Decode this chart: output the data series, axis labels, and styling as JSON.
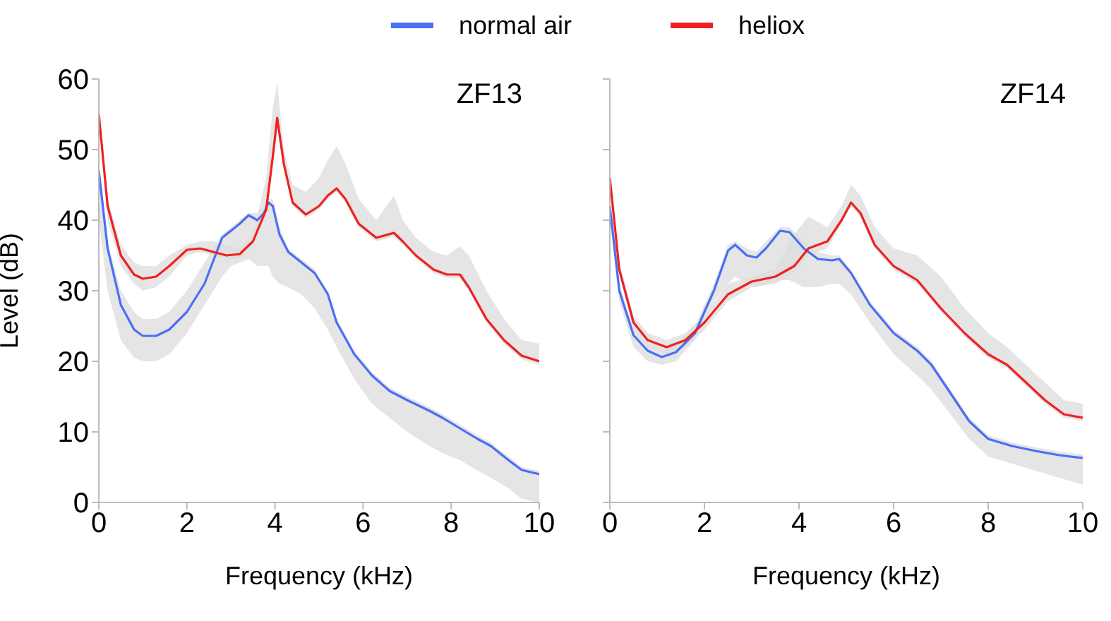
{
  "chart_data": [
    {
      "type": "line",
      "title": "ZF13",
      "xlabel": "Frequency (kHz)",
      "ylabel": "Level (dB)",
      "xlim": [
        0,
        10
      ],
      "xticks": [
        0,
        2,
        4,
        6,
        8,
        10
      ],
      "ylim": [
        0,
        60
      ],
      "yticks": [
        0,
        10,
        20,
        30,
        40,
        50,
        60
      ],
      "grid": false,
      "legend": "top",
      "series": [
        {
          "name": "normal air",
          "color": "#4a6ef5",
          "x": [
            0,
            0.2,
            0.5,
            0.8,
            1.0,
            1.3,
            1.6,
            2.0,
            2.4,
            2.8,
            3.0,
            3.2,
            3.4,
            3.6,
            3.75,
            3.85,
            3.95,
            4.1,
            4.3,
            4.6,
            4.9,
            5.2,
            5.4,
            5.8,
            6.2,
            6.6,
            7.0,
            7.5,
            7.8,
            8.2,
            8.6,
            8.9,
            9.3,
            9.6,
            10
          ],
          "values": [
            47,
            36,
            28,
            24.5,
            23.6,
            23.6,
            24.5,
            27,
            31,
            37.5,
            38.5,
            39.5,
            40.7,
            40,
            41,
            42.5,
            42,
            38,
            35.5,
            34,
            32.5,
            29.5,
            25.5,
            21,
            18,
            15.8,
            14.5,
            13,
            12,
            10.5,
            9,
            8,
            6,
            4.6,
            4
          ],
          "lower": [
            40,
            30,
            23,
            20.5,
            20,
            20,
            21,
            24,
            28,
            32,
            33.5,
            34,
            34.5,
            33.5,
            33.5,
            33.5,
            32,
            31,
            30.5,
            29.5,
            27.5,
            24.5,
            22,
            17.5,
            14,
            12,
            10,
            8,
            7,
            6,
            4.5,
            3.5,
            2,
            0.5,
            0
          ],
          "upper": [
            47,
            37,
            30,
            27,
            26,
            26,
            27,
            30,
            34,
            38,
            39,
            40,
            41,
            41,
            42,
            43,
            43,
            39,
            36,
            34.5,
            33,
            30,
            26,
            21.5,
            18.5,
            16.3,
            15,
            13.5,
            12.5,
            11,
            9.5,
            8.5,
            6.5,
            5,
            4.5
          ]
        },
        {
          "name": "heliox",
          "color": "#f02020",
          "x": [
            0,
            0.2,
            0.5,
            0.8,
            1.0,
            1.3,
            1.6,
            2.0,
            2.3,
            2.6,
            2.9,
            3.2,
            3.5,
            3.8,
            3.95,
            4.05,
            4.2,
            4.4,
            4.7,
            5.0,
            5.2,
            5.4,
            5.6,
            5.9,
            6.3,
            6.7,
            6.9,
            7.2,
            7.6,
            7.9,
            8.2,
            8.4,
            8.8,
            9.2,
            9.6,
            10
          ],
          "values": [
            55,
            42,
            35,
            32.3,
            31.7,
            32,
            33.5,
            35.8,
            36,
            35.5,
            35,
            35.2,
            37,
            41.5,
            49,
            54.5,
            48,
            42.5,
            40.8,
            42,
            43.5,
            44.5,
            43,
            39.5,
            37.5,
            38.2,
            37,
            35,
            33,
            32.3,
            32.3,
            30.5,
            26,
            23,
            20.8,
            20
          ],
          "lower": [
            54,
            40,
            33.5,
            31,
            30,
            30.5,
            32,
            35,
            35.5,
            35,
            34.5,
            34.5,
            36.5,
            40.5,
            48,
            53,
            47,
            42,
            40.3,
            41.5,
            43,
            44,
            42.5,
            39,
            37,
            37.7,
            36.5,
            34.5,
            32.5,
            31.8,
            31.8,
            30,
            25.5,
            22.5,
            20.3,
            19.5
          ],
          "upper": [
            55,
            43,
            36.5,
            34,
            33.5,
            33.5,
            35,
            36.5,
            37,
            37,
            36.5,
            36,
            38,
            46,
            56,
            59.5,
            50,
            45,
            44,
            46,
            48.5,
            50.5,
            48,
            43,
            40,
            43.5,
            40,
            37.5,
            35.5,
            35,
            36.3,
            35,
            30,
            26,
            23,
            22.5
          ]
        }
      ]
    },
    {
      "type": "line",
      "title": "ZF14",
      "xlabel": "Frequency (kHz)",
      "xlim": [
        0,
        10
      ],
      "xticks": [
        0,
        2,
        4,
        6,
        8,
        10
      ],
      "ylim": [
        0,
        60
      ],
      "yticks": [
        0,
        10,
        20,
        30,
        40,
        50,
        60
      ],
      "tick_labels": "x",
      "grid": false,
      "series": [
        {
          "color": "#4a6ef5",
          "x": [
            0,
            0.2,
            0.5,
            0.8,
            1.1,
            1.4,
            1.8,
            2.2,
            2.5,
            2.65,
            2.9,
            3.1,
            3.3,
            3.6,
            3.8,
            4.1,
            4.4,
            4.7,
            4.85,
            5.1,
            5.5,
            6.0,
            6.5,
            6.8,
            7.2,
            7.6,
            8.0,
            8.5,
            9.0,
            9.5,
            10
          ],
          "values": [
            42,
            30,
            23.7,
            21.5,
            20.6,
            21.3,
            24,
            30,
            35.7,
            36.5,
            35,
            34.7,
            36,
            38.5,
            38.3,
            36,
            34.5,
            34.3,
            34.5,
            32.5,
            28,
            24,
            21.5,
            19.5,
            15.5,
            11.5,
            9,
            8,
            7.3,
            6.7,
            6.3
          ],
          "lower": [
            40,
            28.5,
            22,
            20,
            19.5,
            20,
            23,
            28.5,
            31,
            32,
            31,
            30.5,
            31,
            31.5,
            31.5,
            30.5,
            30.5,
            31,
            31,
            29.5,
            25.5,
            21,
            18,
            16,
            12.5,
            9,
            6.5,
            5.5,
            4.5,
            3.5,
            2.5
          ],
          "upper": [
            43,
            31,
            24.5,
            22.5,
            21.5,
            22.5,
            25,
            31,
            36.5,
            37,
            36,
            35.5,
            37,
            39,
            39,
            37,
            35.5,
            35,
            35,
            33,
            28.5,
            24.5,
            22,
            20,
            16,
            12,
            9.5,
            8.5,
            7.8,
            7.2,
            6.8
          ]
        },
        {
          "color": "#f02020",
          "x": [
            0,
            0.2,
            0.5,
            0.8,
            1.2,
            1.6,
            2.0,
            2.5,
            3.0,
            3.5,
            3.9,
            4.2,
            4.6,
            4.9,
            5.1,
            5.3,
            5.6,
            6.0,
            6.5,
            7.0,
            7.5,
            8.0,
            8.4,
            8.8,
            9.2,
            9.6,
            10
          ],
          "values": [
            46,
            33,
            25.5,
            23,
            22,
            23,
            25.5,
            29.5,
            31.3,
            32,
            33.5,
            36,
            37,
            40,
            42.5,
            41,
            36.5,
            33.5,
            31.5,
            27.5,
            24,
            21,
            19.5,
            17,
            14.5,
            12.5,
            12
          ],
          "lower": [
            45,
            32,
            24.5,
            22,
            21,
            22,
            24.5,
            28.5,
            30.5,
            31,
            32.5,
            35,
            36,
            39.5,
            42,
            40.5,
            36,
            33,
            31,
            27,
            23.5,
            20.5,
            19,
            16.5,
            14,
            12,
            11.5
          ],
          "upper": [
            46,
            34,
            26.5,
            24,
            23,
            24,
            26.5,
            31,
            32,
            33,
            38,
            40.5,
            39,
            42,
            45,
            43.5,
            39,
            36,
            35,
            32,
            27.5,
            24,
            22,
            19.5,
            17,
            14.5,
            14
          ]
        }
      ]
    }
  ]
}
